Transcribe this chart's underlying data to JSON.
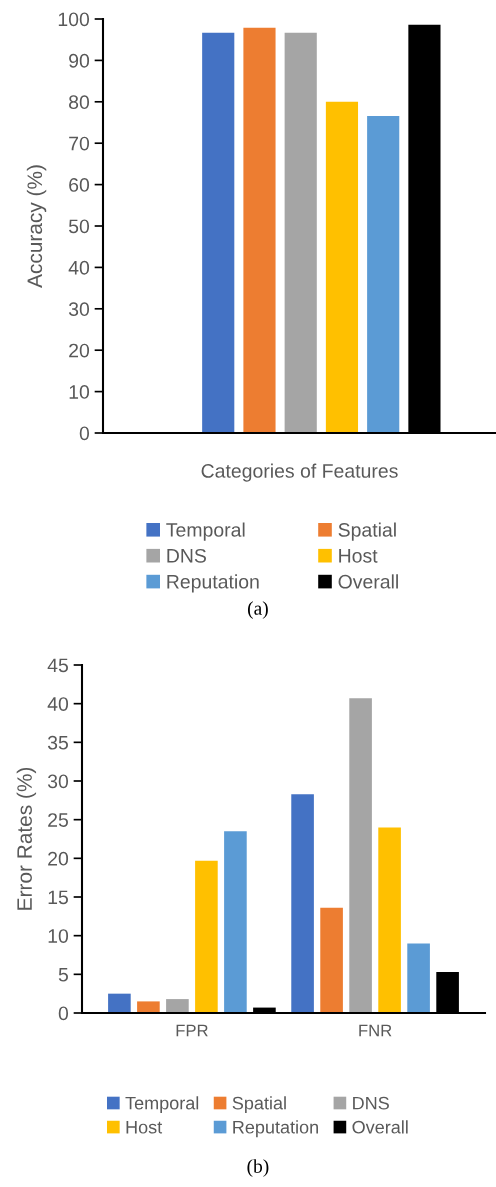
{
  "chart_data": [
    {
      "type": "bar",
      "ylabel": "Accuracy (%)",
      "xlabel": "Categories of Features",
      "categories": [
        null
      ],
      "series": [
        {
          "name": "Temporal",
          "color": "#4472c4",
          "values": [
            96.7
          ]
        },
        {
          "name": "Spatial",
          "color": "#ed7d31",
          "values": [
            97.9
          ]
        },
        {
          "name": "DNS",
          "color": "#a5a5a5",
          "values": [
            96.7
          ]
        },
        {
          "name": "Host",
          "color": "#ffc000",
          "values": [
            80.0
          ]
        },
        {
          "name": "Reputation",
          "color": "#5b9bd5",
          "values": [
            76.6
          ]
        },
        {
          "name": "Overall",
          "color": "#000000",
          "values": [
            98.6
          ]
        }
      ],
      "ylim": [
        0,
        100
      ],
      "yticks": [
        0,
        10,
        20,
        30,
        40,
        50,
        60,
        70,
        80,
        90,
        100
      ],
      "grid": false,
      "legend": "bottom",
      "annotations": [
        "(a)"
      ]
    },
    {
      "type": "bar",
      "ylabel": "Error Rates (%)",
      "categories": [
        "FPR",
        "FNR"
      ],
      "series": [
        {
          "name": "Temporal",
          "color": "#4472c4",
          "values": [
            2.5,
            28.3
          ]
        },
        {
          "name": "Spatial",
          "color": "#ed7d31",
          "values": [
            1.5,
            13.6
          ]
        },
        {
          "name": "DNS",
          "color": "#a5a5a5",
          "values": [
            1.8,
            40.7
          ]
        },
        {
          "name": "Host",
          "color": "#ffc000",
          "values": [
            19.7,
            24.0
          ]
        },
        {
          "name": "Reputation",
          "color": "#5b9bd5",
          "values": [
            23.5,
            9.0
          ]
        },
        {
          "name": "Overall",
          "color": "#000000",
          "values": [
            0.7,
            5.3
          ]
        }
      ],
      "ylim": [
        0,
        45
      ],
      "yticks": [
        0,
        5,
        10,
        15,
        20,
        25,
        30,
        35,
        40,
        45
      ],
      "grid": false,
      "legend": "bottom",
      "annotations": [
        "(b)"
      ]
    }
  ]
}
